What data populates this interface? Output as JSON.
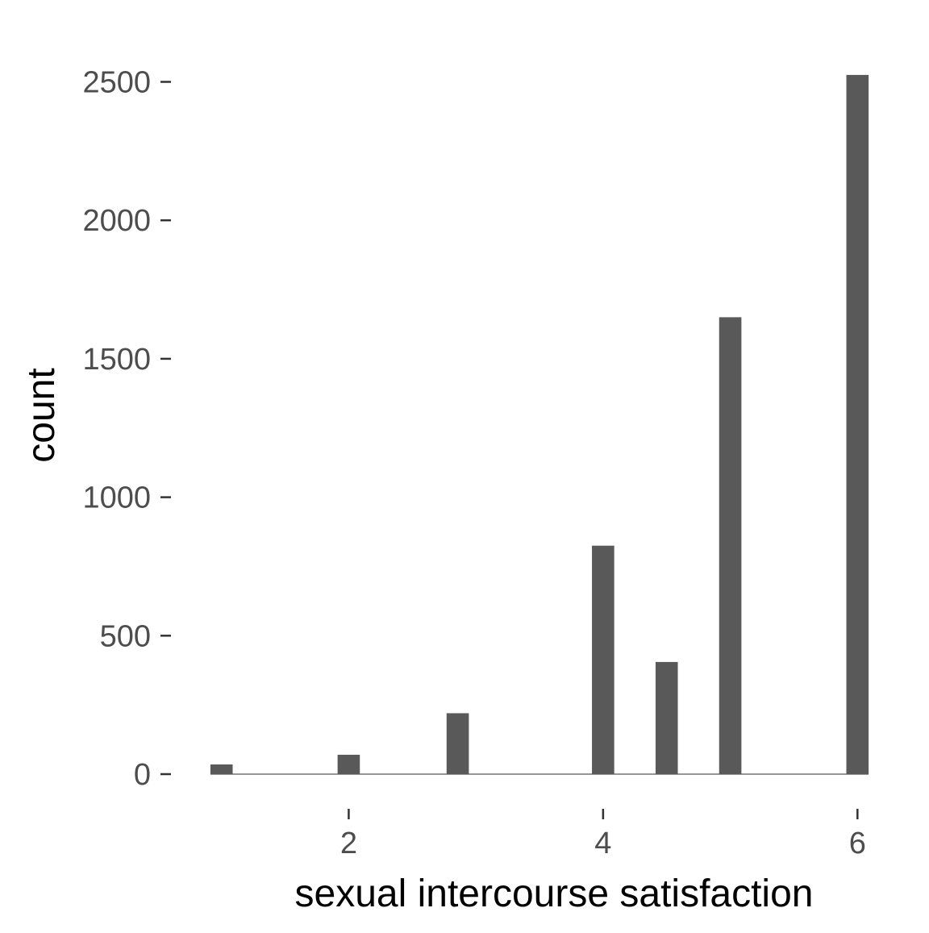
{
  "chart_data": {
    "type": "bar",
    "title": "",
    "xlabel": "sexual intercourse satisfaction",
    "ylabel": "count",
    "x": [
      1.0,
      2.0,
      2.857,
      4.0,
      4.5,
      5.0,
      6.0
    ],
    "values": [
      35,
      70,
      220,
      825,
      405,
      1650,
      2525
    ],
    "bar_width": 0.175,
    "xlim": [
      0.78,
      6.22
    ],
    "ylim": [
      0,
      2650
    ],
    "x_ticks": [
      2,
      4,
      6
    ],
    "y_ticks": [
      0,
      500,
      1000,
      1500,
      2000,
      2500
    ],
    "bar_color": "#595959",
    "tick_color": "#333333",
    "tick_label_color": "#4d4d4d",
    "grid": false,
    "legend": "none"
  }
}
